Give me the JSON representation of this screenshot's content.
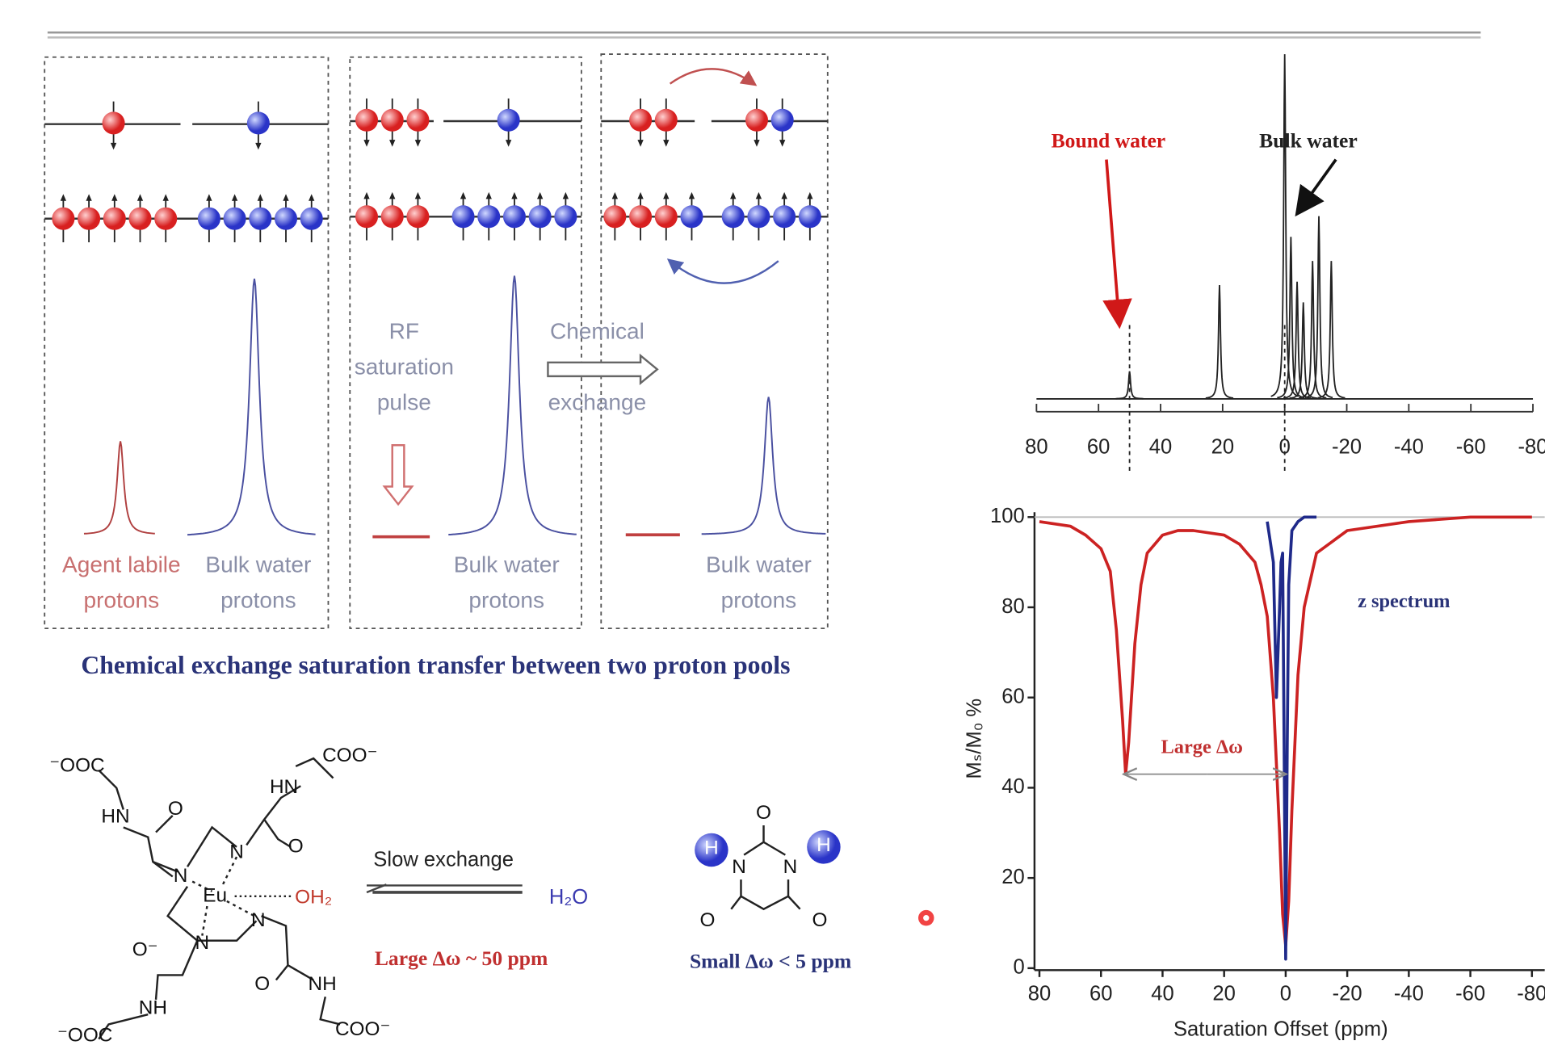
{
  "cest_diagram": {
    "agent_label": [
      "Agent labile",
      "protons"
    ],
    "bulk_labels": [
      [
        "Bulk water",
        "protons"
      ],
      [
        "Bulk water",
        "protons"
      ],
      [
        "Bulk water",
        "protons"
      ]
    ],
    "rf_label": [
      "RF",
      "saturation",
      "pulse"
    ],
    "exchange_label": [
      "Chemical",
      "exchange"
    ],
    "caption": "Chemical exchange saturation transfer between two proton pools"
  },
  "exchange_scheme": {
    "eu_complex_atoms": [
      "⁻OOC",
      "COO⁻",
      "HN",
      "O",
      "HN",
      "O",
      "N",
      "N",
      "Eu",
      "OH₂",
      "N",
      "N",
      "O⁻",
      "O",
      "NH",
      "NH",
      "⁻OOC",
      "COO⁻"
    ],
    "arrow_label": "Slow exchange",
    "water": "H₂O",
    "large_shift": "Large Δω ~ 50 ppm",
    "barbiturate_atoms": [
      "O",
      "N",
      "N",
      "H",
      "H",
      "O",
      "O"
    ],
    "small_shift": "Small Δω < 5 ppm"
  },
  "chart_data": [
    {
      "type": "spectrum",
      "annotations": [
        "Bound water",
        "Bulk water"
      ],
      "x": [
        50,
        21,
        0,
        -2,
        -4,
        -6,
        -9,
        -11,
        -15
      ],
      "values": [
        8,
        33,
        100,
        47,
        34,
        28,
        40,
        53,
        40
      ],
      "color": "#222222",
      "xlim": [
        80,
        -80
      ],
      "ylim": [
        0,
        100
      ],
      "xticks": [
        80,
        60,
        40,
        20,
        0,
        -20,
        -40,
        -60,
        -80
      ]
    },
    {
      "type": "line",
      "xlabel": "Saturation Offset (ppm)",
      "ylabel": "Mₛ/M₀ %",
      "annotations": [
        "z spectrum",
        "Large Δω"
      ],
      "xlim": [
        80,
        -80
      ],
      "ylim": [
        0,
        100
      ],
      "xticks": [
        80,
        60,
        40,
        20,
        0,
        -20,
        -40,
        -60,
        -80
      ],
      "yticks": [
        0,
        20,
        40,
        60,
        80,
        100
      ],
      "series": [
        {
          "color": "#cc2222",
          "x": [
            80,
            70,
            65,
            60,
            57,
            55,
            53,
            52,
            51,
            49,
            47,
            45,
            40,
            35,
            30,
            20,
            15,
            10,
            8,
            6,
            4,
            2,
            1,
            0,
            -1,
            -2,
            -4,
            -6,
            -10,
            -20,
            -40,
            -60,
            -80
          ],
          "values": [
            99,
            98,
            96,
            93,
            88,
            75,
            55,
            43,
            50,
            72,
            85,
            92,
            96,
            97,
            97,
            96,
            94,
            90,
            85,
            78,
            60,
            30,
            12,
            5,
            15,
            35,
            65,
            80,
            92,
            97,
            99,
            100,
            100
          ]
        },
        {
          "color": "#1f2a8a",
          "x": [
            6,
            4,
            3,
            2,
            1.5,
            1,
            0.5,
            0,
            -0.5,
            -1,
            -2,
            -4,
            -6,
            -10
          ],
          "values": [
            99,
            90,
            60,
            80,
            90,
            92,
            50,
            2,
            50,
            85,
            97,
            99,
            100,
            100
          ]
        }
      ]
    }
  ]
}
